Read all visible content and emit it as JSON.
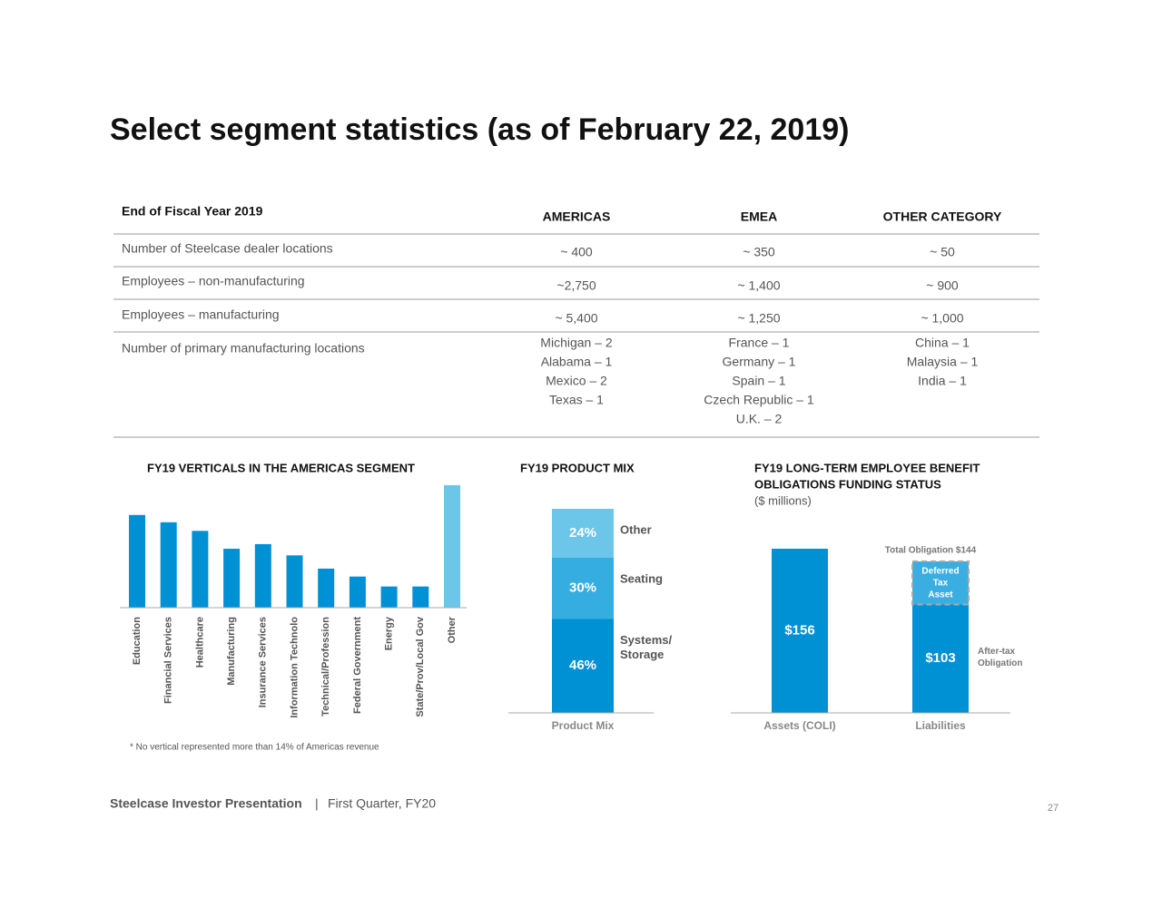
{
  "title": "Select segment statistics (as of February 22, 2019)",
  "table": {
    "header": [
      "End of Fiscal Year 2019",
      "AMERICAS",
      "EMEA",
      "OTHER CATEGORY"
    ],
    "rows": [
      [
        "Number of Steelcase dealer locations",
        "~ 400",
        "~ 350",
        "~ 50"
      ],
      [
        "Employees – non-manufacturing",
        "~2,750",
        "~ 1,400",
        "~ 900"
      ],
      [
        "Employees – manufacturing",
        "~ 5,400",
        "~ 1,250",
        "~ 1,000"
      ],
      [
        "Number of primary manufacturing locations",
        [
          "Michigan – 2",
          "Alabama – 1",
          "Mexico – 2",
          "Texas – 1"
        ],
        [
          "France – 1",
          "Germany – 1",
          "Spain – 1",
          "Czech Republic – 1",
          "U.K. – 2"
        ],
        [
          "China – 1",
          "Malaysia – 1",
          "India – 1"
        ]
      ]
    ]
  },
  "chart_data": [
    {
      "type": "bar",
      "title": "FY19 VERTICALS IN THE AMERICAS SEGMENT",
      "categories": [
        "Education",
        "Financial Services",
        "Healthcare",
        "Manufacturing",
        "Insurance Services",
        "Information Technolo",
        "Technical/Profession",
        "Federal Government",
        "Energy",
        "State/Prov/Local Gov",
        "Other"
      ],
      "values": [
        14,
        12.9,
        11.6,
        8.9,
        9.6,
        7.9,
        5.9,
        4.7,
        3.2,
        3.2,
        18.5
      ],
      "colors": [
        "#0091d5",
        "#0091d5",
        "#0091d5",
        "#0091d5",
        "#0091d5",
        "#0091d5",
        "#0091d5",
        "#0091d5",
        "#0091d5",
        "#0091d5",
        "#6cc6ea"
      ]
    },
    {
      "type": "stacked_bar",
      "title": "FY19 PRODUCT MIX",
      "categories": [
        "Product Mix"
      ],
      "series": [
        {
          "name": [
            "Systems/",
            "Storage"
          ],
          "color": "#0091d5",
          "values": [
            46
          ],
          "value_labels": [
            "46%"
          ]
        },
        {
          "name": [
            "Seating"
          ],
          "color": "#35ade0",
          "values": [
            30
          ],
          "value_labels": [
            "30%"
          ]
        },
        {
          "name": [
            "Other"
          ],
          "color": "#6cc6ea",
          "values": [
            24
          ],
          "value_labels": [
            "24%"
          ]
        }
      ]
    },
    {
      "type": "stacked_bar",
      "title": [
        "FY19 LONG-TERM EMPLOYEE BENEFIT",
        "OBLIGATIONS FUNDING STATUS"
      ],
      "subtitle": "($ millions)",
      "categories": [
        "Assets (COLI)",
        "Liabilities"
      ],
      "series": [
        {
          "color": "#0091d5",
          "values": [
            156,
            103
          ],
          "value_labels": [
            "$156",
            "$103"
          ]
        },
        {
          "name": [
            "Deferred",
            "Tax",
            "Asset"
          ],
          "color": "#3aaee0",
          "dashed": true,
          "values": [
            null,
            41
          ]
        }
      ],
      "annotations": [
        {
          "text": "Total Obligation $144",
          "value": 144
        },
        {
          "text": [
            "After-tax",
            "Obligation"
          ]
        }
      ]
    }
  ],
  "footnote": "* No vertical represented more than 14% of Americas revenue",
  "footer": {
    "brand": "Steelcase Investor Presentation",
    "separator": "|",
    "period": "First Quarter, FY20",
    "page": "27"
  }
}
